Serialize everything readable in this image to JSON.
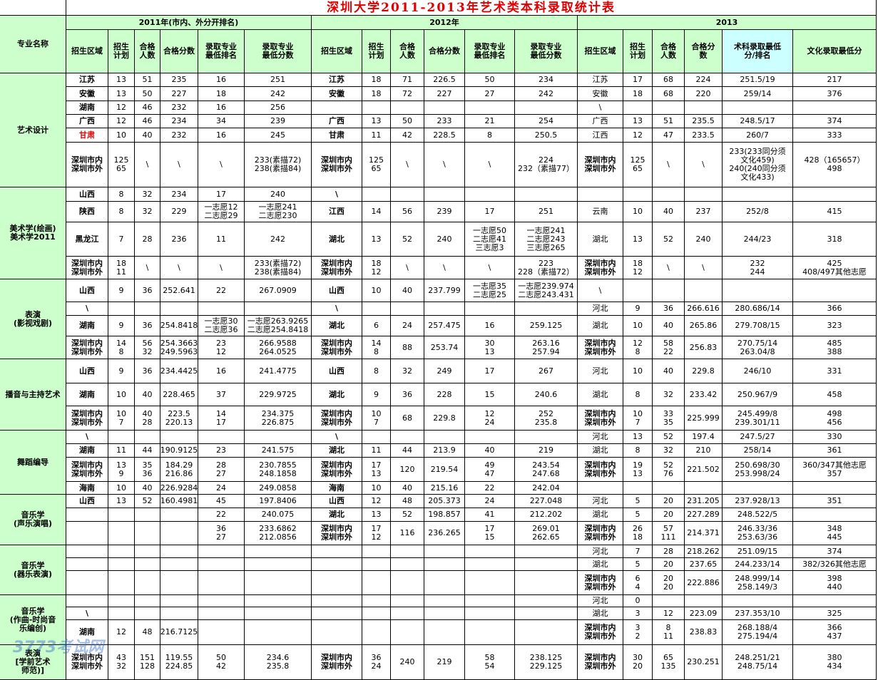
{
  "header": {
    "title": "深圳大学2011-2013年艺术类本科录取统计表",
    "major_label": "专业名称",
    "years": [
      "2011年(市内、外分开排名)",
      "2012年",
      "2013"
    ],
    "columns": [
      [
        "招生区域",
        "招生\n计划",
        "合格\n人数",
        "合格分数",
        "录取专业\n最低排名",
        "录取专业\n最低分数"
      ],
      [
        "招生区域",
        "招生\n计划",
        "合格\n人数",
        "合格分数",
        "录取专业\n最低排名",
        "录取专业\n最低分数"
      ],
      [
        "招生区域",
        "招生\n计划",
        "合格\n人数",
        "合格分\n数",
        "术科录取最低\n分/排名",
        "文化录取最低分"
      ]
    ]
  },
  "watermark": "3773考试网",
  "groups": [
    {
      "major": "艺术设计",
      "rows": [
        [
          "江苏",
          "13",
          "51",
          "235",
          "16",
          "251",
          "江苏",
          "18",
          "71",
          "226.5",
          "50",
          "234",
          "江苏",
          "17",
          "68",
          "224",
          "251.5/19",
          "217"
        ],
        [
          "安徽",
          "13",
          "50",
          "227",
          "18",
          "242",
          "安徽",
          "18",
          "72",
          "227",
          "27",
          "242",
          "安徽",
          "18",
          "68",
          "220",
          "259/14",
          "376"
        ],
        [
          "湖南",
          "12",
          "46",
          "232",
          "16",
          "256",
          null,
          null,
          null,
          null,
          null,
          null,
          "\\",
          null,
          null,
          null,
          null,
          null
        ],
        [
          "广西",
          "12",
          "46",
          "234",
          "34",
          "239",
          "广西",
          "13",
          "50",
          "233",
          "21",
          "254",
          "广西",
          "13",
          "51",
          "235.5",
          "248.5/17",
          "374"
        ],
        [
          "甘肃",
          "10",
          "40",
          "232",
          "16",
          "245",
          "甘肃",
          "11",
          "42",
          "228.5",
          "8",
          "250.5",
          "江西",
          "12",
          "47",
          "233.5",
          "260/7",
          "333"
        ],
        [
          "深圳市内\n深圳市外",
          "125\n65",
          "\\",
          "\\",
          "\\",
          "233(素描72)\n238(素描84)",
          "深圳市内\n深圳市外",
          "125\n65",
          "\\",
          "\\",
          "\\",
          "224\n232（素描77）",
          "深圳市内\n深圳市外",
          "125\n65",
          "\\",
          "\\",
          "233(233同分须\n文化459)\n240(240同分须\n文化433)",
          "428（165657）\n498"
        ]
      ]
    },
    {
      "major": "美术学(绘画)\n美术学2011",
      "rows": [
        [
          "山西",
          "8",
          "32",
          "234",
          "17",
          "240",
          "\\",
          null,
          null,
          null,
          null,
          null,
          null,
          null,
          null,
          null,
          null,
          null
        ],
        [
          "陕西",
          "8",
          "32",
          "229",
          "一志愿12\n二志愿29",
          "一志愿241\n二志愿230",
          "江西",
          "14",
          "56",
          "239",
          "17",
          "251",
          "云南",
          "10",
          "40",
          "237",
          "252/8",
          "415"
        ],
        [
          "黑龙江",
          "7",
          "28",
          "236",
          "11",
          "242",
          "湖北",
          "13",
          "52",
          "240",
          "一志愿50\n二志愿41\n三志愿3",
          "一志愿241\n二志愿243\n三志愿265",
          "湖北",
          "13",
          "52",
          "240",
          "244/23",
          "318"
        ],
        [
          "深圳市内\n深圳市外",
          "18\n11",
          "\\",
          "\\",
          "\\",
          "233(素描72)\n238(素描84)",
          "深圳市内\n深圳市外",
          "18\n12",
          "\\",
          "\\",
          "\\",
          "223\n228（素描72）",
          "深圳市内\n深圳市外",
          "18\n12",
          "\\",
          "\\",
          "232\n244",
          "425\n408/497其他志愿"
        ]
      ]
    },
    {
      "major": "表演\n(影视戏剧)",
      "rows": [
        [
          "山西",
          "9",
          "36",
          "252.641",
          "22",
          "267.0909",
          "山西",
          "10",
          "40",
          "237.799",
          "一志愿35\n二志愿25",
          "一志愿239.974\n二志愿243.431",
          "\\",
          null,
          null,
          null,
          null,
          null
        ],
        [
          "\\",
          null,
          null,
          null,
          null,
          null,
          "\\",
          null,
          null,
          null,
          null,
          null,
          "河北",
          "9",
          "36",
          "266.616",
          "280.686/14",
          "366"
        ],
        [
          "湖南",
          "9",
          "36",
          "254.8418",
          "一志愿30\n二志愿36",
          "一志愿263.9265\n二志愿254.8418",
          "湖北",
          "6",
          "24",
          "257.475",
          "16",
          "259.125",
          "湖北",
          "10",
          "40",
          "265.86",
          "279.708/15",
          "323"
        ],
        [
          "深圳市内\n深圳市外",
          "14\n8",
          "56\n32",
          "254.3663\n249.5963",
          "23\n12",
          "266.9588\n264.0525",
          "深圳市内\n深圳市外",
          "14\n8",
          "88",
          "253.74",
          "30\n13",
          "263.16\n257.94",
          "深圳市内\n深圳市外",
          "12\n8",
          "58\n22",
          "256.83",
          "270.75/14\n263.04/8",
          "485\n388"
        ]
      ]
    },
    {
      "major": "播音与主持艺术",
      "rows": [
        [
          "山西",
          "9",
          "36",
          "234.4425",
          "16",
          "241.4775",
          "山西",
          "8",
          "32",
          "249",
          "17",
          "267",
          "河北",
          "10",
          "40",
          "229.8",
          "246/10",
          "331"
        ],
        [
          "湖南",
          "10",
          "40",
          "228.465",
          "37",
          "229.9725",
          "湖北",
          "9",
          "36",
          "228",
          "15",
          "240.6",
          "湖北",
          "8",
          "32",
          "233.42",
          "250.967/9",
          "458"
        ],
        [
          "深圳市内\n深圳市外",
          "10\n7",
          "40\n28",
          "223.5\n220.13",
          "14\n17",
          "234.375\n226.875",
          "深圳市内\n深圳市外",
          "10\n7",
          "68",
          "229.8",
          "12\n24",
          "252\n235.8",
          "深圳市内\n深圳市外",
          "10\n7",
          "33\n35",
          "225.999",
          "245.499/8\n239.301/11",
          "498\n456"
        ]
      ]
    },
    {
      "major": "舞蹈编导",
      "rows": [
        [
          "\\",
          null,
          null,
          null,
          null,
          null,
          "\\",
          null,
          null,
          null,
          null,
          null,
          "河北",
          "13",
          "52",
          "197.4",
          "247.5/27",
          "330"
        ],
        [
          "湖南",
          "11",
          "44",
          "190.9125",
          "23",
          "241.575",
          "湖北",
          "11",
          "44",
          "213.9",
          "40",
          "219",
          "湖北",
          "8",
          "32",
          "210",
          "258/14",
          "361"
        ],
        [
          "深圳市内\n深圳市外",
          "13\n9",
          "35\n36",
          "184.29\n216.86",
          "28\n27",
          "230.7855\n248.1858",
          "深圳市内\n深圳市外",
          "17\n13",
          "120",
          "219.54",
          "49\n47",
          "243.54\n247.68",
          "深圳市内\n深圳市外",
          "19\n13",
          "52\n76",
          "221.502",
          "250.698/30\n253.998/24",
          "360/347其他志愿\n357"
        ],
        [
          "海南",
          "10",
          "40",
          "226.9284",
          "24",
          "249.0858",
          "海南",
          "10",
          "40",
          "215.16",
          "22",
          "242.04",
          null,
          null,
          null,
          null,
          null,
          null
        ]
      ]
    },
    {
      "major": "音乐学\n(声乐演唱)",
      "rows": [
        [
          "山西",
          "13",
          "52",
          "160.4981",
          "45",
          "197.8406",
          "山西",
          "12",
          "48",
          "205.373",
          "24",
          "227.048",
          "河北",
          "5",
          "20",
          "231.205",
          "237.928/13",
          "351"
        ],
        [
          null,
          null,
          null,
          null,
          "22",
          "240.075",
          "湖北",
          "13",
          "52",
          "198.857",
          "41",
          "212.202",
          "湖北",
          "5",
          "20",
          "227.289",
          "248.522/5",
          null
        ],
        [
          null,
          null,
          null,
          null,
          "36\n27",
          "233.6862\n212.0856",
          "深圳市内\n深圳市外",
          "17\n12",
          "116",
          "236.265",
          "17\n15",
          "269.01\n262.65",
          "深圳市内\n深圳市外",
          "26\n18",
          "57\n111",
          "214.371",
          "246.33/36\n253.63/36",
          "348\n445"
        ]
      ]
    },
    {
      "major": "音乐学\n(器乐表演)",
      "rows": [
        [
          null,
          null,
          null,
          null,
          null,
          null,
          null,
          null,
          null,
          null,
          null,
          null,
          "河北",
          "7",
          "28",
          "218.262",
          "251.09/15",
          "374"
        ],
        [
          null,
          null,
          null,
          null,
          null,
          null,
          null,
          null,
          null,
          null,
          null,
          null,
          "湖北",
          "5",
          "20",
          "237.65",
          "244.233/14",
          "382/326其他志愿"
        ],
        [
          null,
          null,
          null,
          null,
          null,
          null,
          null,
          null,
          null,
          null,
          null,
          null,
          "深圳市内\n深圳市外",
          "6\n4",
          "20\n20",
          "222.886",
          "248.999/14\n258.149/3",
          "398\n440"
        ]
      ]
    },
    {
      "major": "音乐学\n(作曲-时尚音\n乐编创)",
      "rows": [
        [
          null,
          null,
          null,
          null,
          null,
          null,
          null,
          null,
          null,
          null,
          null,
          null,
          "河北",
          "0",
          null,
          null,
          null,
          null
        ],
        [
          "\\",
          null,
          null,
          null,
          null,
          null,
          null,
          null,
          null,
          null,
          null,
          null,
          "湖北",
          "3",
          "12",
          "223.09",
          "237.353/10",
          "325"
        ],
        [
          "湖南",
          "12",
          "48",
          "216.7125",
          null,
          null,
          null,
          null,
          null,
          null,
          null,
          null,
          "深圳市内\n深圳市外",
          "3\n2",
          "8\n11",
          "238.83",
          "268.188/4\n275.194/4",
          "366\n437"
        ]
      ]
    },
    {
      "major": "表演\n[学前艺术\n师范)]",
      "rows": [
        [
          "深圳市内\n深圳市外",
          "43\n32",
          "151\n128",
          "119.55\n224.85",
          "50\n42",
          "234.6\n235.8",
          "深圳市内\n深圳市外",
          "36\n24",
          "240",
          "219",
          "58\n54",
          "238.125\n229.125",
          "深圳市内\n深圳市外",
          "30\n20",
          "65\n135",
          "230.251",
          "248.251/21\n248.75/14",
          "380\n434"
        ]
      ]
    }
  ]
}
